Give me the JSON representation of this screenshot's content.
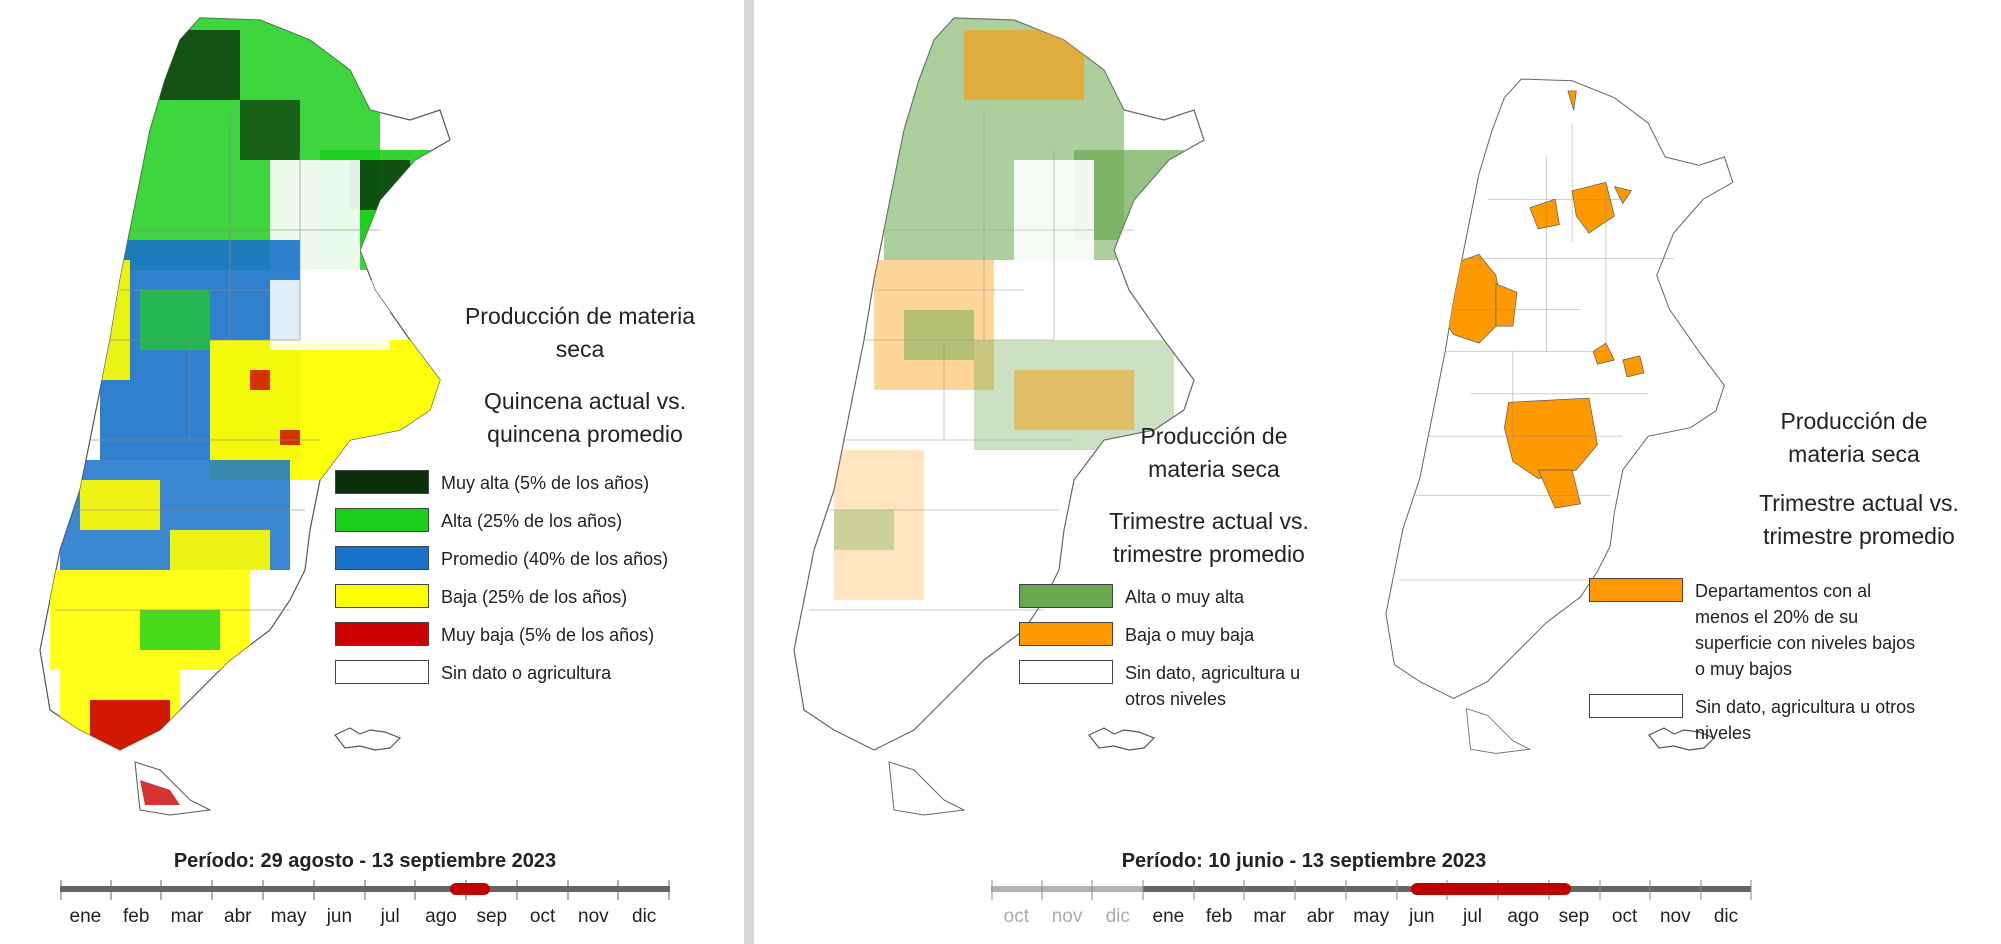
{
  "colors": {
    "muy_alta": "#0a2f0a",
    "alta": "#1ccf1c",
    "promedio": "#1a72c9",
    "baja": "#ffff00",
    "muy_baja": "#cc0000",
    "sin_dato": "#ffffff",
    "alta_trim": "#6aa84f",
    "baja_trim": "#ff9900",
    "timeline_bar": "#666666",
    "timeline_prev": "#b3b3b3",
    "timeline_period": "#c00000"
  },
  "left_panel": {
    "title": [
      "Producción de materia",
      "seca"
    ],
    "subtitle": [
      "Quincena actual vs.",
      "quincena  promedio"
    ],
    "legend": [
      {
        "label": "Muy alta (5% de los años)",
        "color_key": "muy_alta"
      },
      {
        "label": "Alta (25% de los años)",
        "color_key": "alta"
      },
      {
        "label": "Promedio (40% de los años)",
        "color_key": "promedio"
      },
      {
        "label": "Baja (25% de los años)",
        "color_key": "baja"
      },
      {
        "label": "Muy baja (5% de los años)",
        "color_key": "muy_baja"
      },
      {
        "label": "Sin dato o agricultura",
        "color_key": "sin_dato"
      }
    ],
    "period": "Período:  29 agosto  - 13 septiembre 2023",
    "months": [
      "ene",
      "feb",
      "mar",
      "abr",
      "may",
      "jun",
      "jul",
      "ago",
      "sep",
      "oct",
      "nov",
      "dic"
    ]
  },
  "middle_map": {
    "title": [
      "Producción de",
      "materia seca"
    ],
    "subtitle": [
      "Trimestre actual vs.",
      "trimestre promedio"
    ],
    "legend": [
      {
        "label": "Alta o muy alta",
        "color_key": "alta_trim"
      },
      {
        "label": "Baja o muy baja",
        "color_key": "baja_trim"
      },
      {
        "label": "Sin dato, agricultura u otros niveles",
        "color_key": "sin_dato"
      }
    ]
  },
  "right_map": {
    "title": [
      "Producción de",
      "materia seca"
    ],
    "subtitle": [
      "Trimestre actual vs.",
      "trimestre promedio"
    ],
    "legend": [
      {
        "label": "Departamentos con al menos el 20% de su superficie con niveles bajos o muy bajos",
        "color_key": "baja_trim"
      },
      {
        "label": "Sin dato, agricultura u otros niveles",
        "color_key": "sin_dato"
      }
    ]
  },
  "right_panel": {
    "period": "Período:  10 junio  - 13 septiembre 2023",
    "months_prev": [
      "oct",
      "nov",
      "dic"
    ],
    "months": [
      "ene",
      "feb",
      "mar",
      "abr",
      "may",
      "jun",
      "jul",
      "ago",
      "sep",
      "oct",
      "nov",
      "dic"
    ]
  }
}
